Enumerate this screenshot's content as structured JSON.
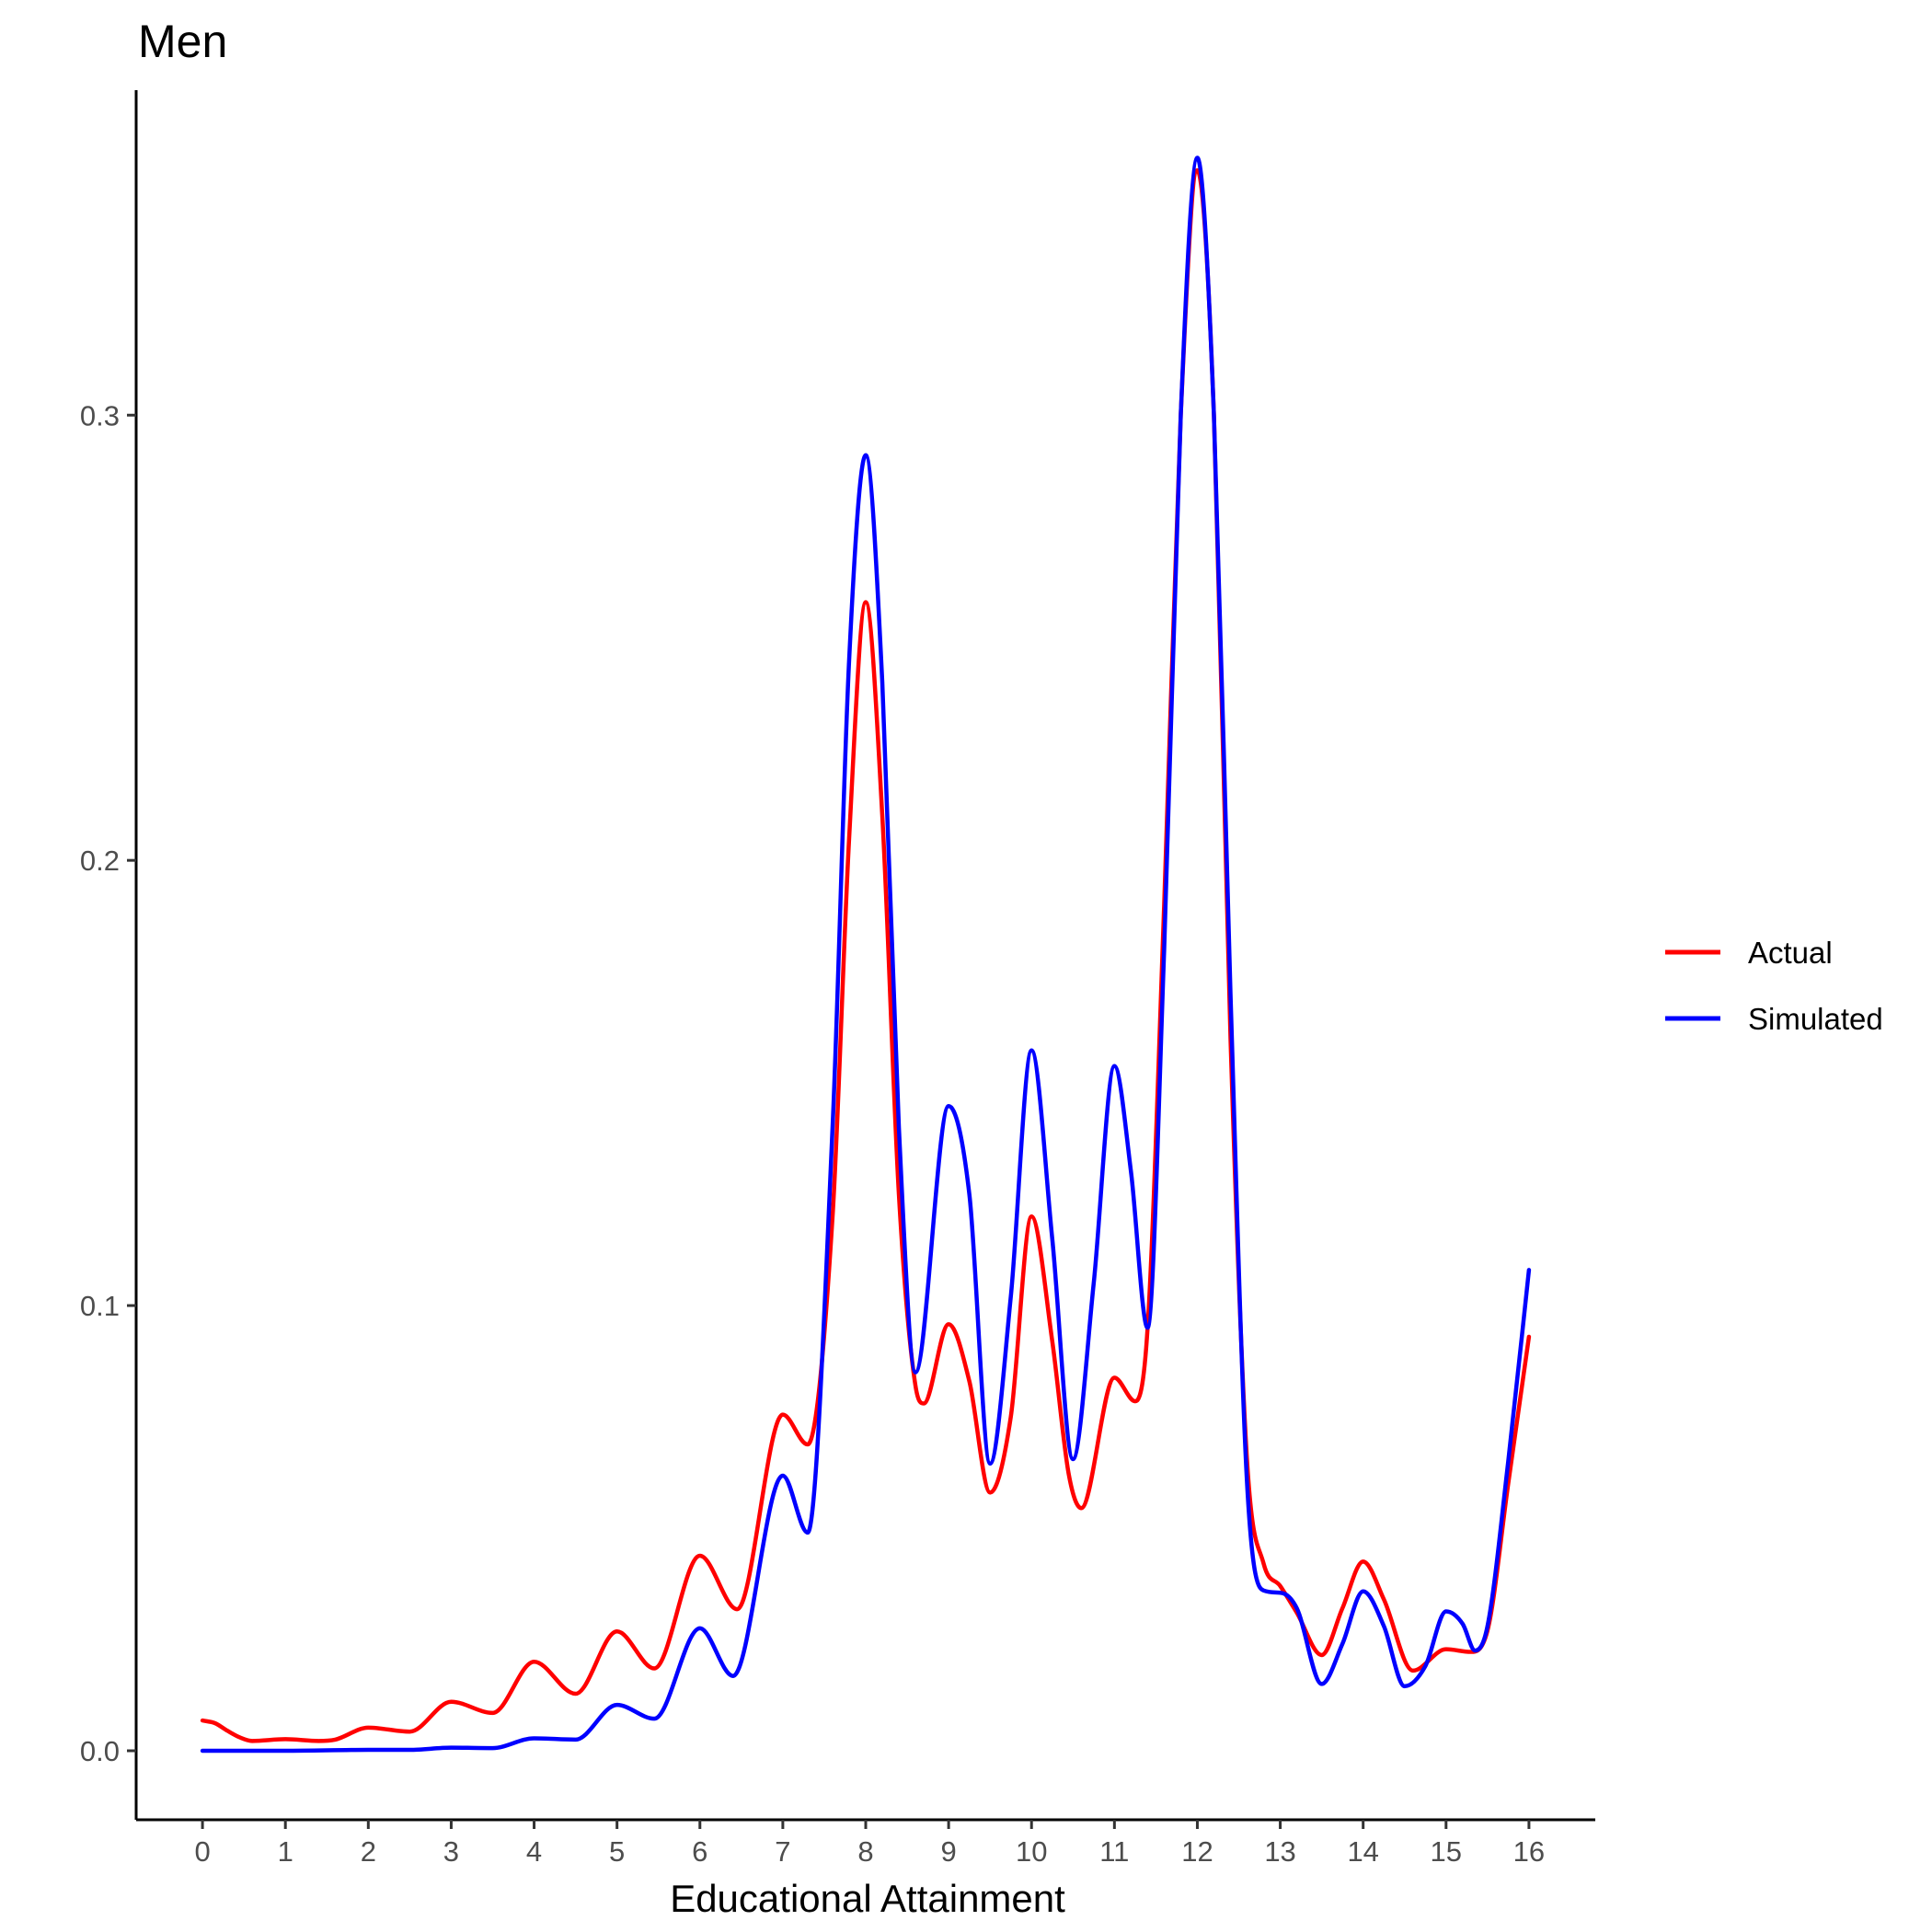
{
  "chart_data": {
    "type": "line",
    "title": "Men",
    "xlabel": "Educational Attainment",
    "ylabel": "",
    "xlim": [
      -0.8,
      16.8
    ],
    "ylim": [
      -0.0155,
      0.373
    ],
    "x_ticks": [
      0,
      1,
      2,
      3,
      4,
      5,
      6,
      7,
      8,
      9,
      10,
      11,
      12,
      13,
      14,
      15,
      16
    ],
    "x_tick_labels": [
      "0",
      "1",
      "2",
      "3",
      "4",
      "5",
      "6",
      "7",
      "8",
      "9",
      "10",
      "11",
      "12",
      "13",
      "14",
      "15",
      "16"
    ],
    "y_ticks": [
      0.0,
      0.1,
      0.2,
      0.3
    ],
    "y_tick_labels": [
      "0.0",
      "0.1",
      "0.2",
      "0.3"
    ],
    "grid": false,
    "legend_position": "right",
    "series": [
      {
        "name": "Actual",
        "color": "#ff0000",
        "x": [
          0,
          0.15,
          0.3,
          0.45,
          0.6,
          1,
          1.4,
          1.6,
          2,
          2.5,
          3,
          3.5,
          4,
          4.5,
          5,
          5.45,
          6,
          6.45,
          7,
          7.3,
          7.6,
          7.8,
          8,
          8.2,
          8.4,
          8.6,
          8.7,
          9,
          9.25,
          9.5,
          9.75,
          10,
          10.25,
          10.45,
          10.6,
          11,
          11.25,
          11.4,
          11.6,
          11.8,
          12,
          12.2,
          12.4,
          12.6,
          12.8,
          13,
          13.2,
          13.5,
          13.75,
          14,
          14.25,
          14.6,
          15,
          15.3,
          15.5,
          15.75,
          16
        ],
        "y": [
          0.0068,
          0.0062,
          0.0045,
          0.003,
          0.0022,
          0.0026,
          0.0022,
          0.0025,
          0.0052,
          0.0043,
          0.011,
          0.0085,
          0.02,
          0.0128,
          0.0268,
          0.0185,
          0.0438,
          0.0318,
          0.0755,
          0.0688,
          0.12,
          0.205,
          0.258,
          0.21,
          0.125,
          0.082,
          0.078,
          0.0958,
          0.083,
          0.058,
          0.075,
          0.12,
          0.092,
          0.062,
          0.0545,
          0.0838,
          0.0785,
          0.095,
          0.19,
          0.3,
          0.355,
          0.3,
          0.16,
          0.065,
          0.042,
          0.037,
          0.031,
          0.0215,
          0.032,
          0.0425,
          0.034,
          0.018,
          0.0228,
          0.0222,
          0.027,
          0.06,
          0.093
        ]
      },
      {
        "name": "Simulated",
        "color": "#0000ff",
        "x": [
          0,
          1,
          2,
          2.5,
          3,
          3.5,
          4,
          4.5,
          5,
          5.45,
          6,
          6.4,
          7,
          7.3,
          7.6,
          7.8,
          8,
          8.2,
          8.4,
          8.6,
          9,
          9.25,
          9.5,
          9.75,
          10,
          10.25,
          10.5,
          10.75,
          11,
          11.2,
          11.4,
          11.6,
          11.8,
          12,
          12.2,
          12.4,
          12.6,
          12.8,
          13,
          13.2,
          13.5,
          13.75,
          14,
          14.25,
          14.5,
          14.75,
          15,
          15.2,
          15.35,
          15.5,
          15.75,
          16
        ],
        "y": [
          0,
          0,
          0.0002,
          0.0002,
          0.0007,
          0.0006,
          0.0028,
          0.0025,
          0.0103,
          0.0072,
          0.0275,
          0.0168,
          0.0618,
          0.049,
          0.14,
          0.245,
          0.291,
          0.24,
          0.14,
          0.085,
          0.1448,
          0.125,
          0.0645,
          0.102,
          0.1573,
          0.115,
          0.0655,
          0.105,
          0.1538,
          0.13,
          0.095,
          0.18,
          0.3,
          0.3578,
          0.3,
          0.17,
          0.06,
          0.036,
          0.0355,
          0.032,
          0.015,
          0.024,
          0.0358,
          0.028,
          0.0145,
          0.019,
          0.0313,
          0.0285,
          0.0225,
          0.028,
          0.065,
          0.108
        ]
      }
    ]
  }
}
